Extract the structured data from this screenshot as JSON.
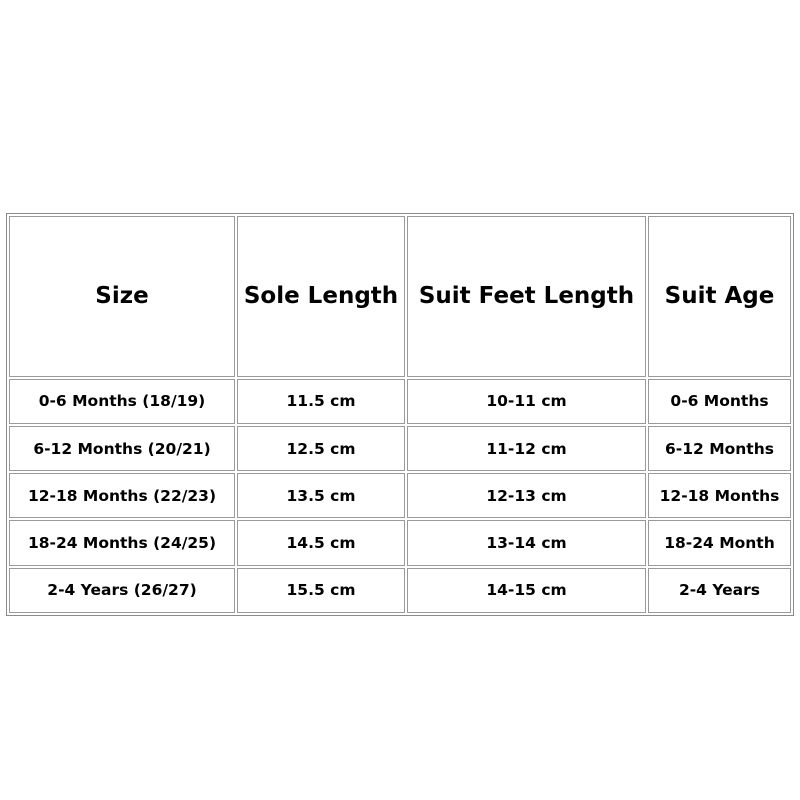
{
  "table": {
    "headers": [
      "Size",
      "Sole Length",
      "Suit Feet Length",
      "Suit Age"
    ],
    "rows": [
      [
        "0-6 Months (18/19)",
        "11.5 cm",
        "10-11 cm",
        "0-6 Months"
      ],
      [
        "6-12 Months (20/21)",
        "12.5 cm",
        "11-12 cm",
        "6-12 Months"
      ],
      [
        "12-18 Months (22/23)",
        "13.5 cm",
        "12-13 cm",
        "12-18 Months"
      ],
      [
        "18-24 Months (24/25)",
        "14.5 cm",
        "13-14 cm",
        "18-24 Month"
      ],
      [
        "2-4 Years (26/27)",
        "15.5 cm",
        "14-15 cm",
        "2-4 Years"
      ]
    ]
  }
}
